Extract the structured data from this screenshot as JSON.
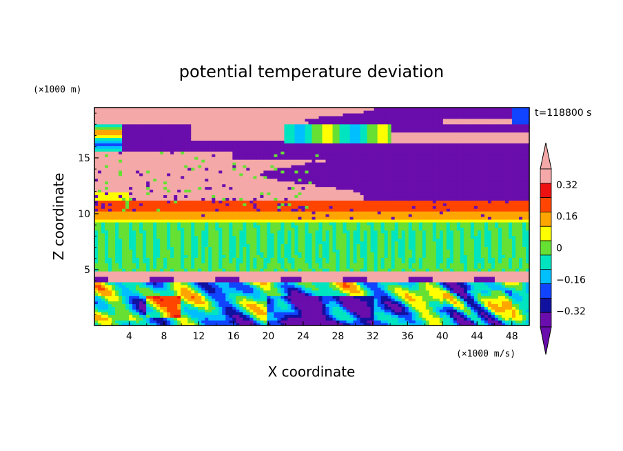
{
  "chart_data": {
    "type": "heatmap",
    "title": "potential temperature deviation",
    "xlabel": "X coordinate",
    "ylabel": "Z coordinate",
    "x_unit": "(×1000 m/s)",
    "y_unit": "(×1000 m)",
    "time_label": "t=118800 s",
    "xlim": [
      0,
      50
    ],
    "ylim": [
      0,
      19.5
    ],
    "x_ticks": [
      4,
      8,
      12,
      16,
      20,
      24,
      28,
      32,
      36,
      40,
      44,
      48
    ],
    "y_ticks": [
      5,
      10,
      15
    ],
    "grid": false,
    "legend_placement": "right",
    "colorbar": {
      "tick_labels": [
        "0.32",
        "0.16",
        "0",
        "−0.16",
        "−0.32"
      ],
      "tick_values": [
        0.32,
        0.16,
        0,
        -0.16,
        -0.32
      ],
      "levels": [
        -0.4,
        -0.32,
        -0.24,
        -0.16,
        -0.08,
        0,
        0.08,
        0.16,
        0.24,
        0.32,
        0.4
      ],
      "colors": [
        "#6a0dad",
        "#1111a0",
        "#1144ff",
        "#00bfff",
        "#00e5c0",
        "#66e033",
        "#ffff00",
        "#ffa500",
        "#ff4500",
        "#ee1111",
        "#f4a8a8"
      ],
      "extends": "both"
    },
    "regions": [
      {
        "zmin": 18.0,
        "zmax": 19.5,
        "value": 0.45,
        "description": "upper band mostly warm (pink) on left, cold (purple) on right"
      },
      {
        "zmin": 12.0,
        "zmax": 15.5,
        "value": 0.45,
        "description": "warm (pink) layer on left, cold (purple) on right"
      },
      {
        "zmin": 10.3,
        "zmax": 11.1,
        "value": 0.3,
        "description": "red/orange band"
      },
      {
        "zmin": 5.0,
        "zmax": 9.6,
        "value": 0.02,
        "description": "green neutral layer with cyan streaks"
      },
      {
        "zmin": 4.0,
        "zmax": 4.8,
        "value": 0.45,
        "description": "thin pink layer with purple patches"
      },
      {
        "zmin": 0.0,
        "zmax": 4.0,
        "value": 0.0,
        "description": "turbulent mixed layer, cyan/green/blue/purple/red"
      }
    ]
  }
}
